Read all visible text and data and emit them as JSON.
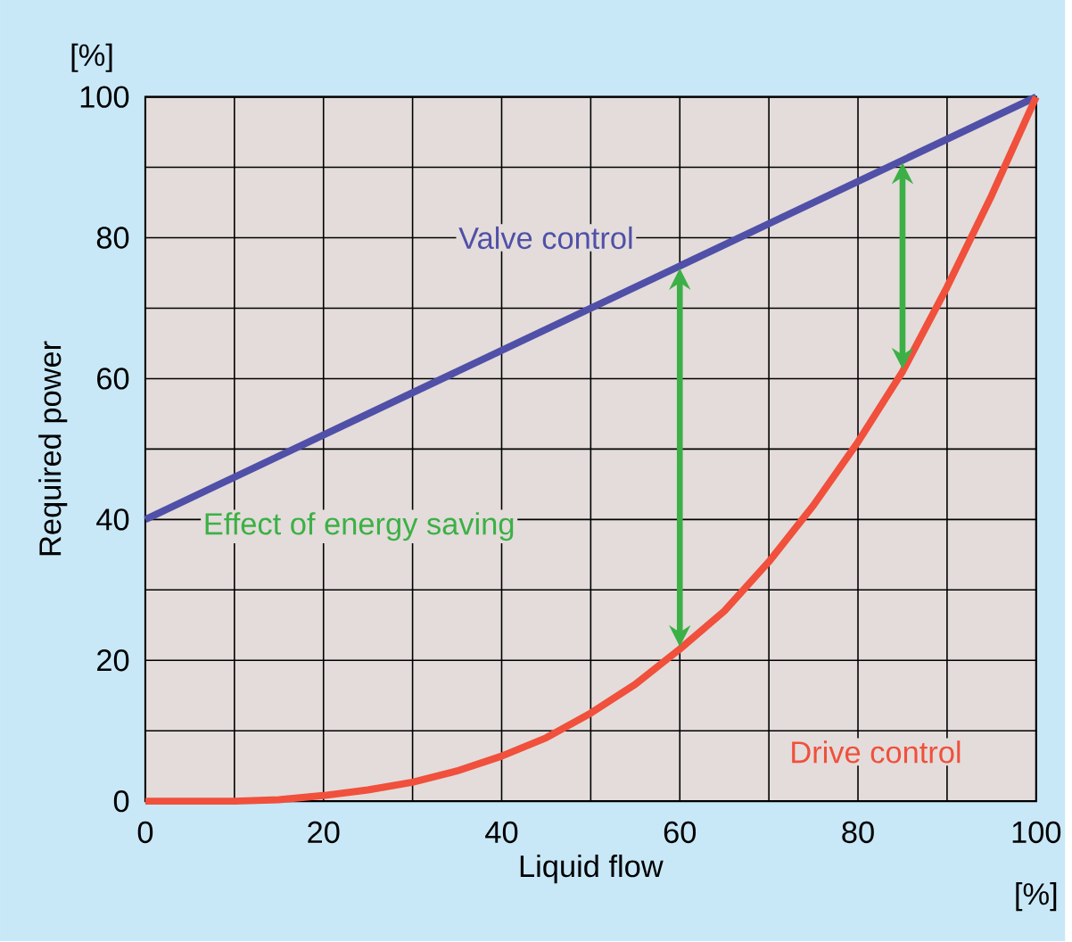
{
  "chart_data": {
    "type": "line",
    "xlabel": "Liquid flow",
    "ylabel": "Required power",
    "annotations": [
      "Effect of energy saving",
      "[%]",
      "[%]"
    ],
    "series": [
      {
        "name": "Valve control",
        "color": "#5050a8",
        "x": [
          0,
          100
        ],
        "values": [
          40,
          100
        ]
      },
      {
        "name": "Drive control",
        "color": "#f0503c",
        "x": [
          0,
          5,
          10,
          15,
          20,
          25,
          30,
          35,
          40,
          45,
          50,
          55,
          60,
          65,
          70,
          75,
          80,
          85,
          90,
          95,
          100
        ],
        "values": [
          0,
          0,
          0,
          0.2,
          0.8,
          1.6,
          2.7,
          4.3,
          6.4,
          9,
          12.5,
          16.6,
          21.6,
          27,
          34,
          42,
          51,
          61,
          73,
          86,
          100
        ]
      }
    ],
    "xlim": [
      0,
      100
    ],
    "ylim": [
      0,
      100
    ],
    "xticks": [
      0,
      {
        "value": 10,
        "label": null
      },
      20,
      {
        "value": 30,
        "label": null
      },
      40,
      {
        "value": 50,
        "label": null
      },
      60,
      {
        "value": 70,
        "label": null
      },
      80,
      {
        "value": 90,
        "label": null
      },
      100
    ],
    "yticks": [
      0,
      {
        "value": 10,
        "label": null
      },
      20,
      {
        "value": 30,
        "label": null
      },
      40,
      {
        "value": 50,
        "label": null
      },
      60,
      {
        "value": 70,
        "label": null
      },
      80,
      {
        "value": 90,
        "label": null
      },
      100
    ],
    "grid": true,
    "marker": "none",
    "line_style": "solid"
  }
}
